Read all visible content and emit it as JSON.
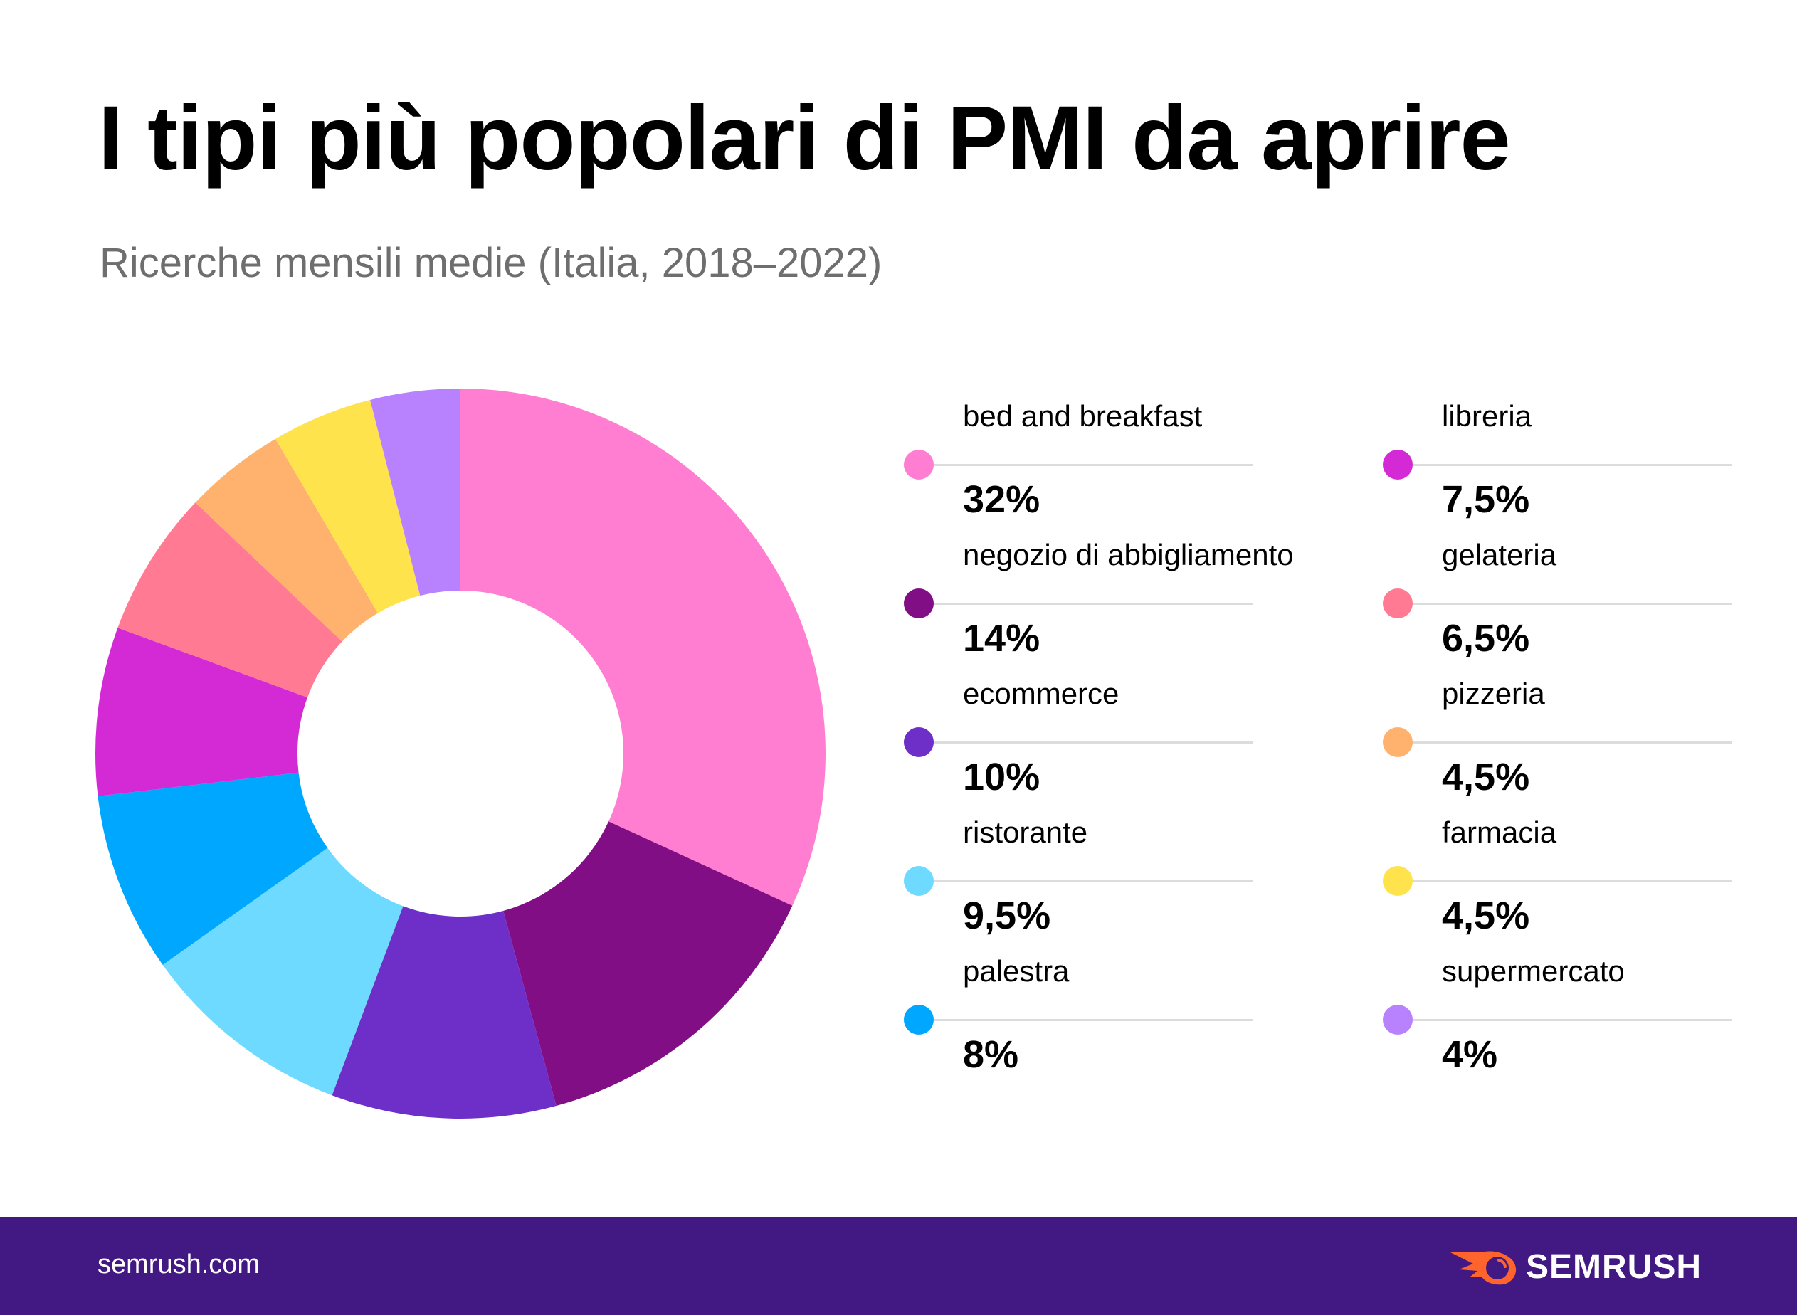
{
  "header": {
    "title": "I tipi più popolari di PMI da aprire",
    "subtitle": "Ricerche mensili medie (Italia, 2018–2022)"
  },
  "chart_data": {
    "type": "pie",
    "variant": "donut",
    "title": "I tipi più popolari di PMI da aprire",
    "subtitle": "Ricerche mensili medie (Italia, 2018–2022)",
    "unit": "%",
    "start": "top, clockwise",
    "legend_position": "right",
    "slices": [
      {
        "label": "bed and breakfast",
        "value": 32,
        "display": "32%",
        "color": "#ff7ed1"
      },
      {
        "label": "negozio di abbigliamento",
        "value": 14,
        "display": "14%",
        "color": "#820e86"
      },
      {
        "label": "ecommerce",
        "value": 10,
        "display": "10%",
        "color": "#6d2fc7"
      },
      {
        "label": "ristorante",
        "value": 9.5,
        "display": "9,5%",
        "color": "#6fdaff"
      },
      {
        "label": "palestra",
        "value": 8,
        "display": "8%",
        "color": "#00a7ff"
      },
      {
        "label": "libreria",
        "value": 7.5,
        "display": "7,5%",
        "color": "#d42ad6"
      },
      {
        "label": "gelateria",
        "value": 6.5,
        "display": "6,5%",
        "color": "#ff7a92"
      },
      {
        "label": "pizzeria",
        "value": 4.5,
        "display": "4,5%",
        "color": "#ffb26e"
      },
      {
        "label": "farmacia",
        "value": 4.5,
        "display": "4,5%",
        "color": "#ffe34c"
      },
      {
        "label": "supermercato",
        "value": 4,
        "display": "4%",
        "color": "#b882ff"
      }
    ]
  },
  "footer": {
    "url": "semrush.com",
    "brand": "SEMRUSH",
    "background_color": "#421983",
    "logo_color": "#ff642d"
  }
}
